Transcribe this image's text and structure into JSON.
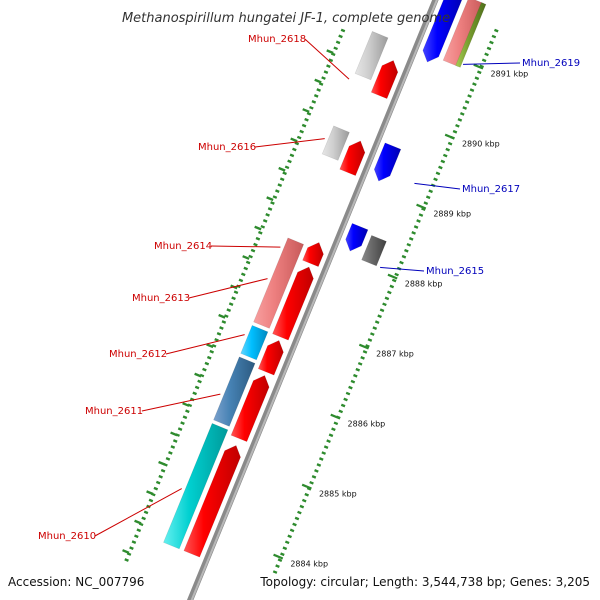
{
  "title": "Methanospirillum hungatei JF-1, complete genome",
  "footer": {
    "accession": "Accession: NC_007796",
    "summary": "Topology: circular; Length: 3,544,738 bp; Genes: 3,205"
  },
  "colors": {
    "forward_gene": "#ff0000",
    "reverse_gene": "#0000ff",
    "label_forward": "#cc0000",
    "label_reverse": "#0000bb",
    "gc_track": "#2e8b2e"
  },
  "ruler": {
    "ticks": [
      {
        "kbp": 2884,
        "label": "2884 kbp"
      },
      {
        "kbp": 2885,
        "label": "2885 kbp"
      },
      {
        "kbp": 2886,
        "label": "2886 kbp"
      },
      {
        "kbp": 2887,
        "label": "2887 kbp"
      },
      {
        "kbp": 2888,
        "label": "2888 kbp"
      },
      {
        "kbp": 2889,
        "label": "2889 kbp"
      },
      {
        "kbp": 2890,
        "label": "2890 kbp"
      },
      {
        "kbp": 2891,
        "label": "2891 kbp"
      }
    ]
  },
  "gene_labels": [
    {
      "name": "Mhun_2618",
      "strand": "forward",
      "kbp": 2890.2
    },
    {
      "name": "Mhun_2616",
      "strand": "forward",
      "kbp": 2889.35
    },
    {
      "name": "Mhun_2614",
      "strand": "forward",
      "kbp": 2887.8
    },
    {
      "name": "Mhun_2613",
      "strand": "forward",
      "kbp": 2887.35
    },
    {
      "name": "Mhun_2612",
      "strand": "forward",
      "kbp": 2886.55
    },
    {
      "name": "Mhun_2611",
      "strand": "forward",
      "kbp": 2885.7
    },
    {
      "name": "Mhun_2610",
      "strand": "forward",
      "kbp": 2884.35
    },
    {
      "name": "Mhun_2619",
      "strand": "reverse",
      "kbp": 2890.95
    },
    {
      "name": "Mhun_2617",
      "strand": "reverse",
      "kbp": 2889.25
    },
    {
      "name": "Mhun_2615",
      "strand": "reverse",
      "kbp": 2888.05
    }
  ],
  "features": [
    {
      "lane": "fwd_cds",
      "color": "red",
      "start_kbp": 2890.15,
      "end_kbp": 2890.65,
      "arrow": true
    },
    {
      "lane": "fwd_cds",
      "color": "red",
      "start_kbp": 2889.05,
      "end_kbp": 2889.5,
      "arrow": true
    },
    {
      "lane": "fwd_cds",
      "color": "red",
      "start_kbp": 2887.75,
      "end_kbp": 2888.05,
      "arrow": true
    },
    {
      "lane": "fwd_cds",
      "color": "red",
      "start_kbp": 2886.7,
      "end_kbp": 2887.7,
      "arrow": true
    },
    {
      "lane": "fwd_cds",
      "color": "red",
      "start_kbp": 2886.2,
      "end_kbp": 2886.65,
      "arrow": true
    },
    {
      "lane": "fwd_cds",
      "color": "red",
      "start_kbp": 2885.25,
      "end_kbp": 2886.15,
      "arrow": true
    },
    {
      "lane": "fwd_cds",
      "color": "red",
      "start_kbp": 2883.6,
      "end_kbp": 2885.15,
      "arrow": true
    },
    {
      "lane": "fwd_cog",
      "color": "gray",
      "start_kbp": 2890.3,
      "end_kbp": 2890.9,
      "arrow": false
    },
    {
      "lane": "fwd_cog",
      "color": "gray",
      "start_kbp": 2889.15,
      "end_kbp": 2889.55,
      "arrow": false
    },
    {
      "lane": "fwd_cog",
      "color": "pink",
      "start_kbp": 2886.75,
      "end_kbp": 2887.95,
      "arrow": false
    },
    {
      "lane": "fwd_cog",
      "color": "sky",
      "start_kbp": 2886.3,
      "end_kbp": 2886.7,
      "arrow": false
    },
    {
      "lane": "fwd_cog",
      "color": "steel",
      "start_kbp": 2885.35,
      "end_kbp": 2886.25,
      "arrow": false
    },
    {
      "lane": "fwd_cog",
      "color": "cyan",
      "start_kbp": 2883.6,
      "end_kbp": 2885.3,
      "arrow": false
    },
    {
      "lane": "rev_cds",
      "color": "blue",
      "start_kbp": 2888.1,
      "end_kbp": 2888.45,
      "arrow": true
    },
    {
      "lane": "rev_cds",
      "color": "blue",
      "start_kbp": 2889.1,
      "end_kbp": 2889.6,
      "arrow": true
    },
    {
      "lane": "rev_cds",
      "color": "blue",
      "start_kbp": 2890.8,
      "end_kbp": 2891.8,
      "arrow": true
    },
    {
      "lane": "rev_cog",
      "color": "dark",
      "start_kbp": 2888.05,
      "end_kbp": 2888.4,
      "arrow": false
    },
    {
      "lane": "rev_cog",
      "color": "pink",
      "start_kbp": 2890.9,
      "end_kbp": 2891.8,
      "arrow": false
    },
    {
      "lane": "rev_cog2",
      "color": "olive",
      "start_kbp": 2890.9,
      "end_kbp": 2891.8,
      "arrow": false
    }
  ]
}
